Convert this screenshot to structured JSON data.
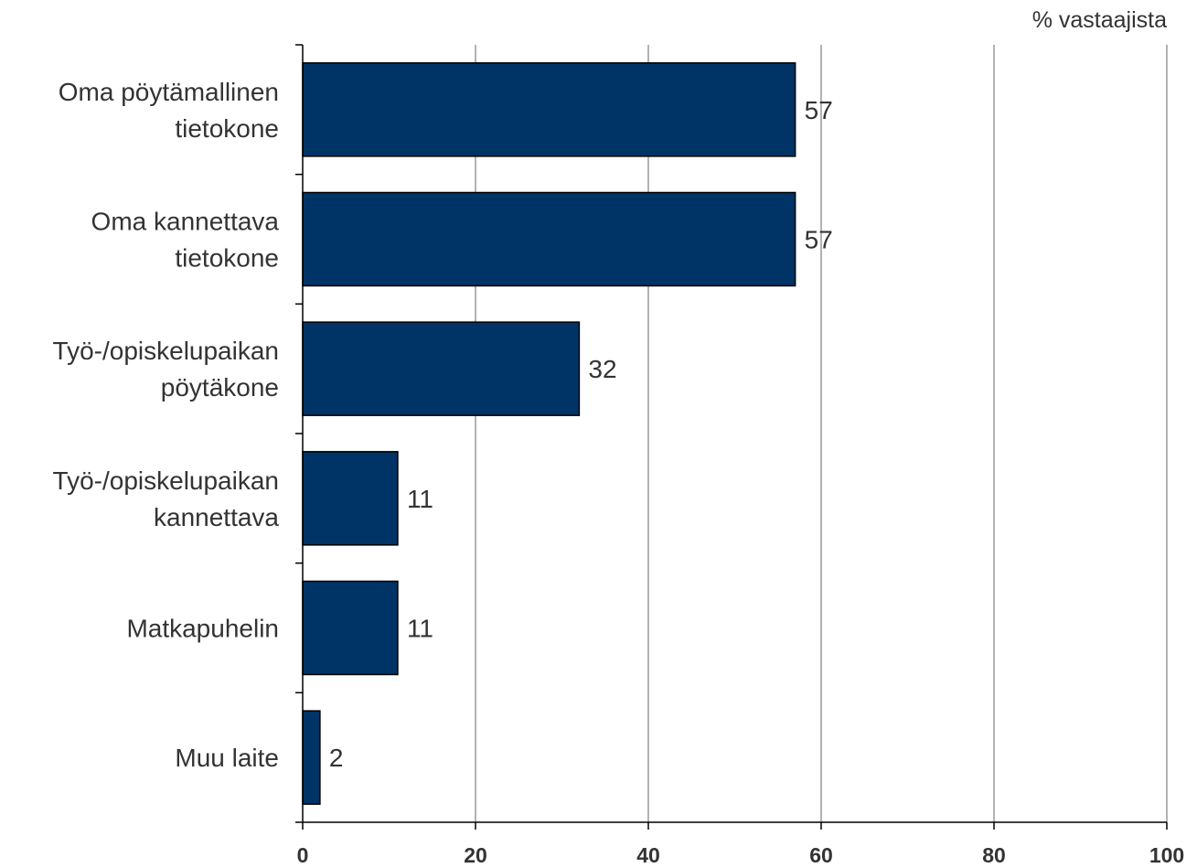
{
  "chart_data": {
    "type": "bar",
    "orientation": "horizontal",
    "unit_label": "% vastaajista",
    "categories": [
      [
        "Oma pöytämallinen",
        "tietokone"
      ],
      [
        "Oma kannettava",
        "tietokone"
      ],
      [
        "Työ-/opiskelupaikan",
        "pöytäkone"
      ],
      [
        "Työ-/opiskelupaikan",
        "kannettava"
      ],
      [
        "Matkapuhelin"
      ],
      [
        "Muu laite"
      ]
    ],
    "values": [
      57,
      57,
      32,
      11,
      11,
      2
    ],
    "data_labels": [
      "57",
      "57",
      "32",
      "11",
      "11",
      "2"
    ],
    "xlim": [
      0,
      100
    ],
    "x_ticks": [
      "0",
      "20",
      "40",
      "60",
      "80",
      "100"
    ],
    "grid": true,
    "colors": {
      "bar": "#003366",
      "bar_border": "#000000",
      "grid": "#808080",
      "axis": "#000000",
      "text": "#333333"
    }
  }
}
